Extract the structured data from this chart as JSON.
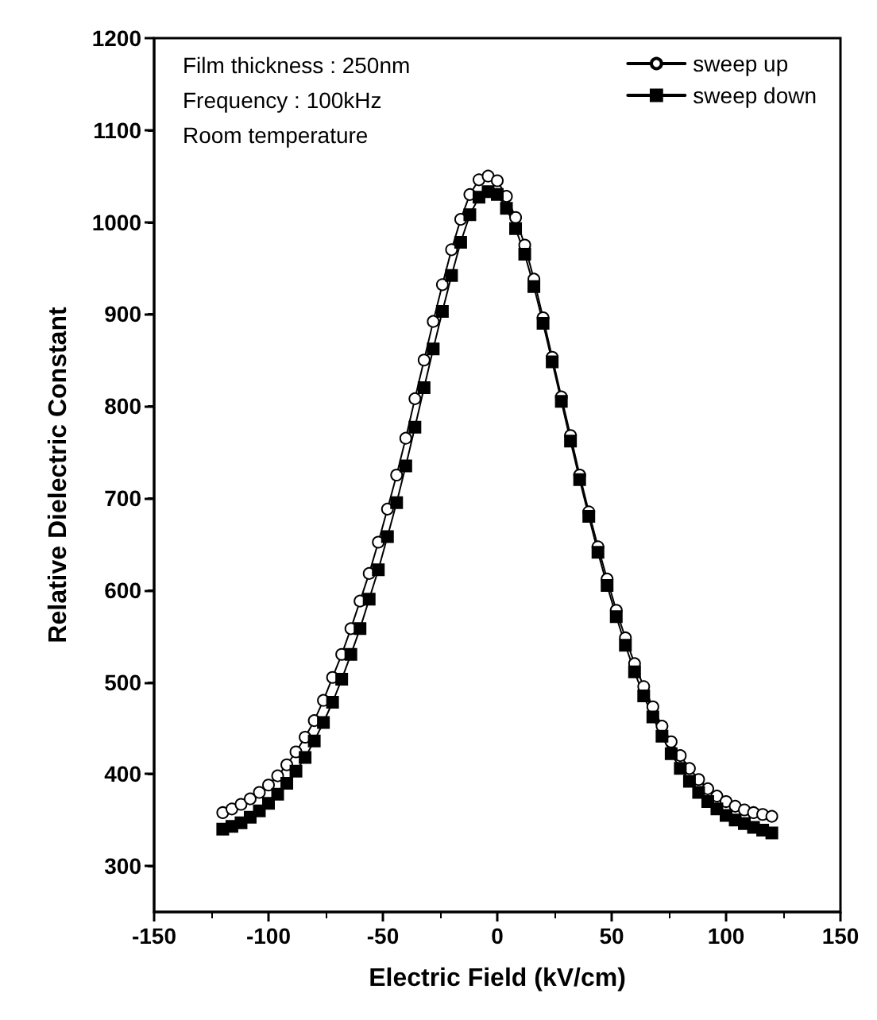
{
  "chart_data": {
    "type": "line",
    "xlabel": "Electric Field (kV/cm)",
    "ylabel": "Relative Dielectric Constant",
    "annotations": [
      "Film thickness : 250nm",
      "Frequency : 100kHz",
      "Room temperature"
    ],
    "x": [
      -120,
      -116,
      -112,
      -108,
      -104,
      -100,
      -96,
      -92,
      -88,
      -84,
      -80,
      -76,
      -72,
      -68,
      -64,
      -60,
      -56,
      -52,
      -48,
      -44,
      -40,
      -36,
      -32,
      -28,
      -24,
      -20,
      -16,
      -12,
      -8,
      -4,
      0,
      4,
      8,
      12,
      16,
      20,
      24,
      28,
      32,
      36,
      40,
      44,
      48,
      52,
      56,
      60,
      64,
      68,
      72,
      76,
      80,
      84,
      88,
      92,
      96,
      100,
      104,
      108,
      112,
      116,
      120
    ],
    "series": [
      {
        "name": "sweep up",
        "color": "#000000",
        "marker": "circle",
        "values": [
          358,
          362,
          367,
          373,
          380,
          388,
          398,
          410,
          424,
          440,
          458,
          480,
          505,
          530,
          558,
          588,
          618,
          652,
          688,
          725,
          765,
          808,
          850,
          892,
          932,
          970,
          1003,
          1030,
          1046,
          1050,
          1045,
          1028,
          1005,
          975,
          938,
          896,
          853,
          810,
          768,
          725,
          685,
          647,
          612,
          578,
          548,
          520,
          495,
          473,
          452,
          435,
          420,
          406,
          394,
          384,
          376,
          370,
          365,
          361,
          358,
          356,
          354
        ]
      },
      {
        "name": "sweep down",
        "color": "#000000",
        "marker": "square",
        "values": [
          340,
          343,
          347,
          353,
          360,
          368,
          378,
          390,
          403,
          418,
          436,
          456,
          478,
          503,
          530,
          558,
          590,
          622,
          658,
          695,
          735,
          777,
          820,
          862,
          903,
          942,
          978,
          1008,
          1027,
          1033,
          1030,
          1015,
          993,
          965,
          930,
          890,
          848,
          805,
          762,
          720,
          680,
          641,
          605,
          571,
          540,
          511,
          485,
          462,
          441,
          422,
          406,
          392,
          380,
          370,
          362,
          355,
          350,
          346,
          342,
          339,
          336
        ]
      }
    ],
    "xlim": [
      -150,
      150
    ],
    "xticks": [
      -150,
      -100,
      -50,
      0,
      50,
      100,
      150
    ],
    "ylim": [
      250,
      1200
    ],
    "yticks": [
      300,
      400,
      500,
      600,
      700,
      800,
      900,
      1000,
      1100,
      1200
    ],
    "grid": false,
    "legend": "top right",
    "line_style": "solid"
  }
}
